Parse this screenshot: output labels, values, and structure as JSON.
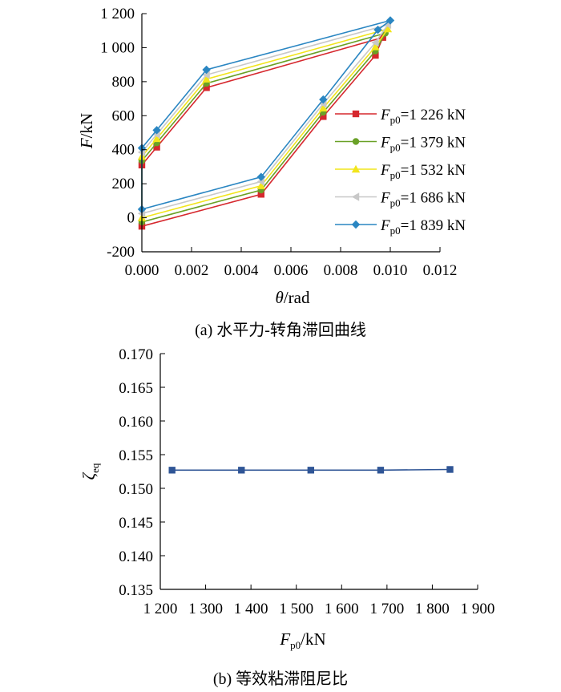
{
  "chart_data": [
    {
      "type": "line",
      "xlabel": "θ/rad",
      "ylabel": "F/kN",
      "xlim": [
        0,
        0.012
      ],
      "ylim": [
        -200,
        1200
      ],
      "x_ticks": [
        "0.000",
        "0.002",
        "0.004",
        "0.006",
        "0.008",
        "0.010",
        "0.012"
      ],
      "y_ticks": [
        "-200",
        "0",
        "200",
        "400",
        "600",
        "800",
        "1 000",
        "1 200"
      ],
      "legend_position": "right",
      "caption": "(a) 水平力-转角滞回曲线",
      "series": [
        {
          "name": "Fp0=1 226 kN",
          "name_main": "F",
          "name_sub": "p0",
          "name_rest": "=1 226 kN",
          "color": "#d6282e",
          "marker": "square",
          "points": [
            [
              0,
              310
            ],
            [
              0.0006,
              415
            ],
            [
              0.0026,
              765
            ],
            [
              0.0097,
              1060
            ],
            [
              0.0094,
              955
            ],
            [
              0.0073,
              595
            ],
            [
              0.0048,
              138
            ],
            [
              0,
              -50
            ]
          ]
        },
        {
          "name": "Fp0=1 379 kN",
          "name_main": "F",
          "name_sub": "p0",
          "name_rest": "=1 379 kN",
          "color": "#6aa127",
          "marker": "circle",
          "points": [
            [
              0,
              335
            ],
            [
              0.0006,
              440
            ],
            [
              0.0026,
              790
            ],
            [
              0.0098,
              1085
            ],
            [
              0.0094,
              980
            ],
            [
              0.0073,
              620
            ],
            [
              0.0048,
              163
            ],
            [
              0,
              -25
            ]
          ]
        },
        {
          "name": "Fp0=1 532 kN",
          "name_main": "F",
          "name_sub": "p0",
          "name_rest": "=1 532 kN",
          "color": "#f2e51c",
          "marker": "triangle",
          "points": [
            [
              0,
              360
            ],
            [
              0.0006,
              465
            ],
            [
              0.0026,
              815
            ],
            [
              0.0099,
              1110
            ],
            [
              0.0094,
              1005
            ],
            [
              0.0073,
              645
            ],
            [
              0.0048,
              188
            ],
            [
              0,
              0
            ]
          ]
        },
        {
          "name": "Fp0=1 686 kN",
          "name_main": "F",
          "name_sub": "p0",
          "name_rest": "=1 686 kN",
          "color": "#c8c8c8",
          "marker": "triangle-left",
          "points": [
            [
              0,
              385
            ],
            [
              0.0006,
              490
            ],
            [
              0.0026,
              840
            ],
            [
              0.0099,
              1135
            ],
            [
              0.0094,
              1030
            ],
            [
              0.0073,
              670
            ],
            [
              0.0048,
              213
            ],
            [
              0,
              25
            ]
          ]
        },
        {
          "name": "Fp0=1 839 kN",
          "name_main": "F",
          "name_sub": "p0",
          "name_rest": "=1 839 kN",
          "color": "#2a86c2",
          "marker": "diamond",
          "points": [
            [
              0,
              410
            ],
            [
              0.0006,
              515
            ],
            [
              0.0026,
              870
            ],
            [
              0.01,
              1160
            ],
            [
              0.0095,
              1105
            ],
            [
              0.0073,
              695
            ],
            [
              0.0048,
              240
            ],
            [
              0,
              50
            ]
          ]
        }
      ]
    },
    {
      "type": "line",
      "xlabel": "Fp0/kN",
      "xlabel_main": "F",
      "xlabel_sub": "p0",
      "xlabel_rest": "/kN",
      "ylabel": "ζeq",
      "ylabel_main": "ζ",
      "ylabel_sub": "eq",
      "xlim": [
        1200,
        1900
      ],
      "ylim": [
        0.135,
        0.17
      ],
      "x_ticks": [
        "1 200",
        "1 300",
        "1 400",
        "1 500",
        "1 600",
        "1 700",
        "1 800",
        "1 900"
      ],
      "y_ticks": [
        "0.135",
        "0.140",
        "0.145",
        "0.150",
        "0.155",
        "0.160",
        "0.165",
        "0.170"
      ],
      "caption": "(b) 等效粘滞阻尼比",
      "series": [
        {
          "color": "#2f5596",
          "marker": "square",
          "points": [
            [
              1226,
              0.1527
            ],
            [
              1379,
              0.1527
            ],
            [
              1532,
              0.1527
            ],
            [
              1686,
              0.1527
            ],
            [
              1839,
              0.1528
            ]
          ]
        }
      ]
    }
  ]
}
